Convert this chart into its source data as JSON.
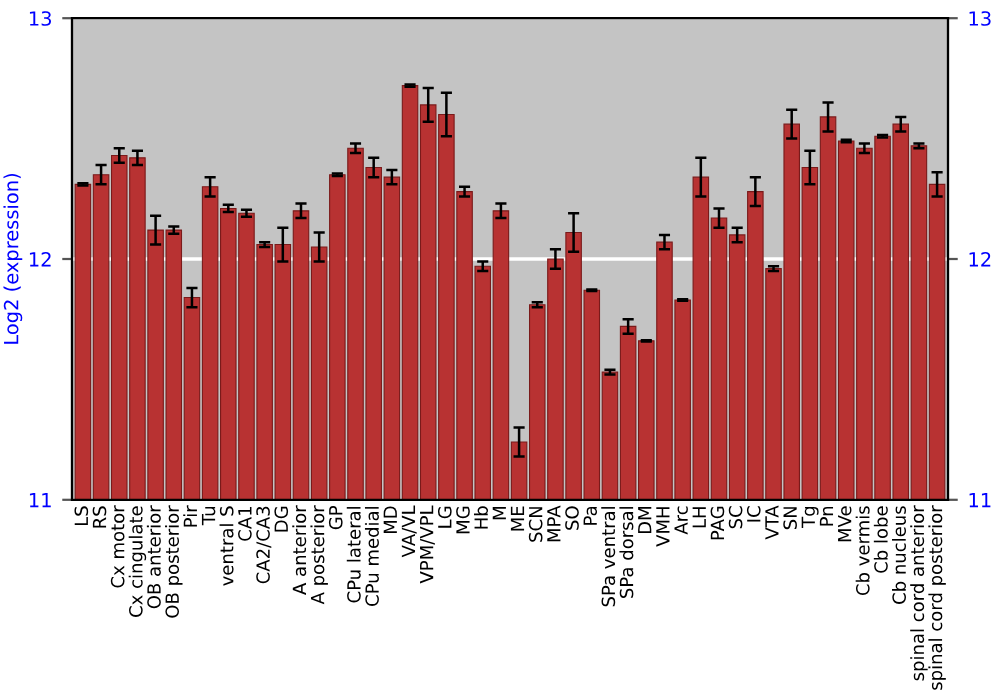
{
  "chart_data": {
    "type": "bar",
    "ylabel": "Log2 (expression)",
    "categories": [
      "LS",
      "RS",
      "Cx motor",
      "Cx cingulate",
      "OB anterior",
      "OB posterior",
      "Pir",
      "Tu",
      "ventral S",
      "CA1",
      "CA2/CA3",
      "DG",
      "A anterior",
      "A posterior",
      "GP",
      "CPu lateral",
      "CPu medial",
      "MD",
      "VA/VL",
      "VPM/VPL",
      "LG",
      "MG",
      "Hb",
      "M",
      "ME",
      "SCN",
      "MPA",
      "SO",
      "Pa",
      "SPa ventral",
      "SPa dorsal",
      "DM",
      "VMH",
      "Arc",
      "LH",
      "PAG",
      "SC",
      "IC",
      "VTA",
      "SN",
      "Tg",
      "Pn",
      "MVe",
      "Cb vermis",
      "Cb lobe",
      "Cb nucleus",
      "spinal cord anterior",
      "spinal cord posterior"
    ],
    "values": [
      12.31,
      12.35,
      12.43,
      12.42,
      12.12,
      12.12,
      11.84,
      12.3,
      12.21,
      12.19,
      12.06,
      12.06,
      12.2,
      12.05,
      12.35,
      12.46,
      12.38,
      12.34,
      12.72,
      12.64,
      12.6,
      12.28,
      11.97,
      12.2,
      11.24,
      11.81,
      12.0,
      12.11,
      11.87,
      11.53,
      11.72,
      11.66,
      12.07,
      11.83,
      12.34,
      12.17,
      12.1,
      12.28,
      11.96,
      12.56,
      12.38,
      12.59,
      12.49,
      12.46,
      12.51,
      12.56,
      12.47,
      12.31
    ],
    "errors": [
      0.005,
      0.04,
      0.03,
      0.03,
      0.06,
      0.015,
      0.04,
      0.04,
      0.015,
      0.015,
      0.01,
      0.07,
      0.03,
      0.06,
      0.005,
      0.02,
      0.04,
      0.03,
      0.005,
      0.07,
      0.09,
      0.02,
      0.02,
      0.03,
      0.06,
      0.01,
      0.04,
      0.08,
      0.003,
      0.01,
      0.03,
      0.003,
      0.03,
      0.003,
      0.08,
      0.04,
      0.03,
      0.06,
      0.01,
      0.06,
      0.07,
      0.06,
      0.005,
      0.02,
      0.005,
      0.03,
      0.01,
      0.05
    ],
    "color": "#b83232",
    "ylim": [
      11,
      13
    ],
    "yticks": [
      11,
      12,
      13
    ],
    "y2lim": [
      11,
      13
    ],
    "y2ticks": [
      11,
      12,
      13
    ],
    "grid": "y",
    "legend": false
  }
}
